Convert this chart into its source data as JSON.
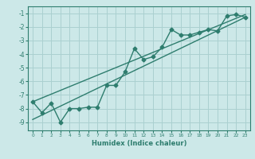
{
  "xlabel": "Humidex (Indice chaleur)",
  "ylabel": "",
  "bg_color": "#cce8e8",
  "grid_color": "#aad0d0",
  "line_color": "#2e7d6e",
  "x_ticks": [
    0,
    1,
    2,
    3,
    4,
    5,
    6,
    7,
    8,
    9,
    10,
    11,
    12,
    13,
    14,
    15,
    16,
    17,
    18,
    19,
    20,
    21,
    22,
    23
  ],
  "y_ticks": [
    -9,
    -8,
    -7,
    -6,
    -5,
    -4,
    -3,
    -2,
    -1
  ],
  "xlim": [
    -0.5,
    23.5
  ],
  "ylim": [
    -9.6,
    -0.5
  ],
  "line1_x": [
    0,
    1,
    2,
    3,
    4,
    5,
    6,
    7,
    8,
    9,
    10,
    11,
    12,
    13,
    14,
    15,
    16,
    17,
    18,
    19,
    20,
    21,
    22,
    23
  ],
  "line1_y": [
    -7.5,
    -8.3,
    -7.6,
    -9.0,
    -8.0,
    -8.0,
    -7.9,
    -7.9,
    -6.3,
    -6.3,
    -5.3,
    -3.6,
    -4.4,
    -4.2,
    -3.5,
    -2.2,
    -2.6,
    -2.6,
    -2.4,
    -2.2,
    -2.3,
    -1.2,
    -1.1,
    -1.3
  ],
  "line2_x": [
    0,
    23
  ],
  "line2_y": [
    -7.5,
    -1.1
  ],
  "line3_x": [
    0,
    23
  ],
  "line3_y": [
    -8.8,
    -1.3
  ],
  "marker": "D",
  "markersize": 2.5,
  "linewidth": 1.0
}
